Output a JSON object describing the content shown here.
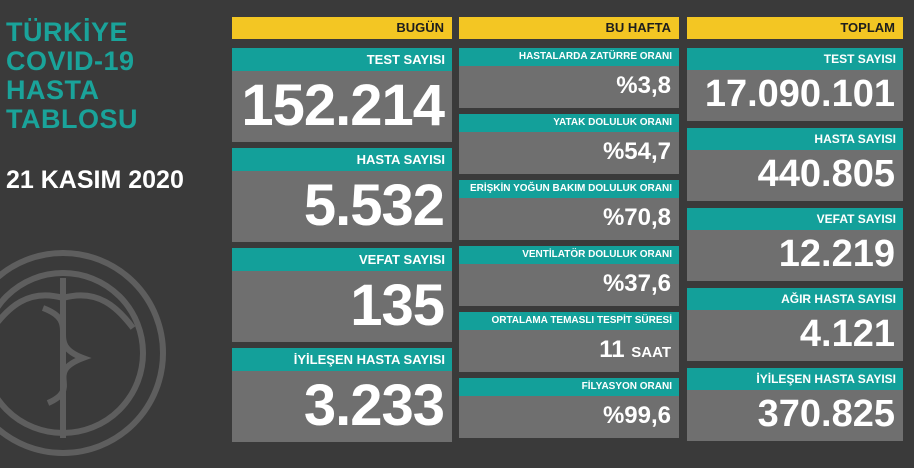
{
  "title_lines": [
    "TÜRKİYE",
    "COVID-19",
    "HASTA",
    "TABLOSU"
  ],
  "date": "21 KASIM 2020",
  "colors": {
    "accent": "#13a09a",
    "header": "#f3c623",
    "card": "#6f6f6f",
    "background": "#3a3a3a"
  },
  "headers": {
    "today": "BUGÜN",
    "week": "BU HAFTA",
    "total": "TOPLAM"
  },
  "today": [
    {
      "label": "TEST SAYISI",
      "value": "152.214"
    },
    {
      "label": "HASTA SAYISI",
      "value": "5.532"
    },
    {
      "label": "VEFAT SAYISI",
      "value": "135"
    },
    {
      "label": "İYİLEŞEN HASTA SAYISI",
      "value": "3.233"
    }
  ],
  "week": [
    {
      "label": "HASTALARDA ZATÜRRE ORANI",
      "value": "%3,8",
      "unit": ""
    },
    {
      "label": "YATAK DOLULUK ORANI",
      "value": "%54,7",
      "unit": ""
    },
    {
      "label": "ERİŞKİN YOĞUN BAKIM DOLULUK ORANI",
      "value": "%70,8",
      "unit": ""
    },
    {
      "label": "VENTİLATÖR DOLULUK ORANI",
      "value": "%37,6",
      "unit": ""
    },
    {
      "label": "ORTALAMA TEMASLI TESPİT SÜRESİ",
      "value": "11",
      "unit": "SAAT"
    },
    {
      "label": "FİLYASYON ORANI",
      "value": "%99,6",
      "unit": ""
    }
  ],
  "total": [
    {
      "label": "TEST SAYISI",
      "value": "17.090.101"
    },
    {
      "label": "HASTA SAYISI",
      "value": "440.805"
    },
    {
      "label": "VEFAT SAYISI",
      "value": "12.219"
    },
    {
      "label": "AĞIR HASTA SAYISI",
      "value": "4.121"
    },
    {
      "label": "İYİLEŞEN HASTA SAYISI",
      "value": "370.825"
    }
  ]
}
